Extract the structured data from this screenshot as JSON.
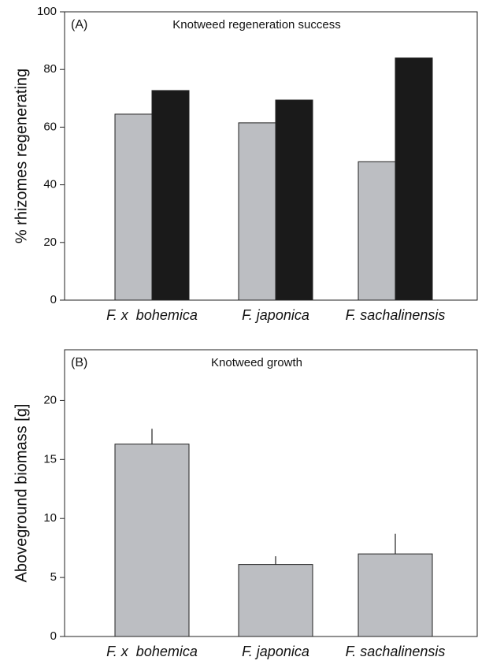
{
  "chart_data": [
    {
      "type": "bar",
      "annotation": "(A)",
      "title": "Knotweed regeneration success",
      "ylabel": "% rhizomes regenerating",
      "categories": [
        "F. x  bohemica",
        "F. japonica",
        "F. sachalinensis"
      ],
      "series": [
        {
          "color": "#bcbec2",
          "values": [
            64.5,
            61.5,
            48
          ]
        },
        {
          "color": "#1a1a1a",
          "values": [
            72.7,
            69.4,
            84
          ]
        }
      ],
      "ylim": [
        0,
        100
      ],
      "yticks": [
        0,
        20,
        40,
        60,
        80,
        100
      ]
    },
    {
      "type": "bar",
      "annotation": "(B)",
      "title": "Knotweed growth",
      "ylabel": "Aboveground biomass [g]",
      "categories": [
        "F. x  bohemica",
        "F. japonica",
        "F. sachalinensis"
      ],
      "color": "#bcbec2",
      "values": [
        16.3,
        6.1,
        7.0
      ],
      "errors": [
        1.3,
        0.7,
        1.7
      ],
      "ylim": [
        0,
        24.3
      ],
      "yticks": [
        0,
        5,
        10,
        15,
        20
      ]
    }
  ]
}
